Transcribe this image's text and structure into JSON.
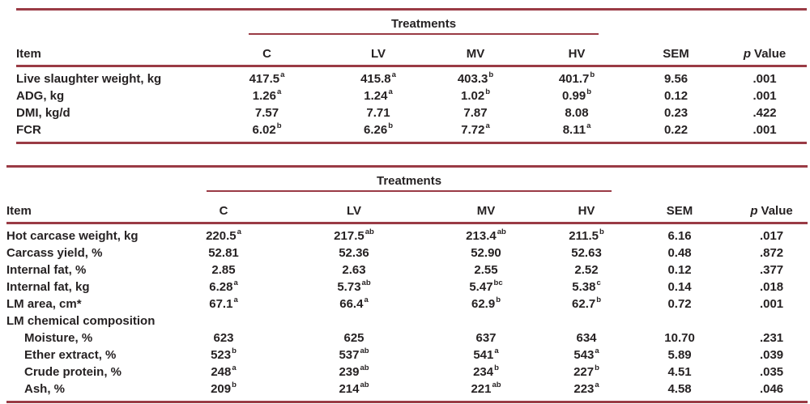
{
  "page": {
    "background": "#ffffff",
    "rule_color": "#9a3b45",
    "text_color": "#262223"
  },
  "tables": [
    {
      "id": "growth-performance",
      "treatments_label": "Treatments",
      "headers": {
        "item": "Item",
        "treatments": [
          "C",
          "LV",
          "MV",
          "HV"
        ],
        "sem": "SEM",
        "p_italic": "p",
        "p_rest": "Value"
      },
      "rows": [
        {
          "label": "Live slaughter weight, kg",
          "indent": false,
          "values": [
            {
              "v": "417.5",
              "sup": "a"
            },
            {
              "v": "415.8",
              "sup": "a"
            },
            {
              "v": "403.3",
              "sup": "b"
            },
            {
              "v": "401.7",
              "sup": "b"
            }
          ],
          "sem": "9.56",
          "p": ".001"
        },
        {
          "label": "ADG, kg",
          "indent": false,
          "values": [
            {
              "v": "1.26",
              "sup": "a"
            },
            {
              "v": "1.24",
              "sup": "a"
            },
            {
              "v": "1.02",
              "sup": "b"
            },
            {
              "v": "0.99",
              "sup": "b"
            }
          ],
          "sem": "0.12",
          "p": ".001"
        },
        {
          "label": "DMI, kg/d",
          "indent": false,
          "values": [
            {
              "v": "7.57",
              "sup": ""
            },
            {
              "v": "7.71",
              "sup": ""
            },
            {
              "v": "7.87",
              "sup": ""
            },
            {
              "v": "8.08",
              "sup": ""
            }
          ],
          "sem": "0.23",
          "p": ".422"
        },
        {
          "label": "FCR",
          "indent": false,
          "values": [
            {
              "v": "6.02",
              "sup": "b"
            },
            {
              "v": "6.26",
              "sup": "b"
            },
            {
              "v": "7.72",
              "sup": "a"
            },
            {
              "v": "8.11",
              "sup": "a"
            }
          ],
          "sem": "0.22",
          "p": ".001"
        }
      ]
    },
    {
      "id": "carcass-traits",
      "treatments_label": "Treatments",
      "headers": {
        "item": "Item",
        "treatments": [
          "C",
          "LV",
          "MV",
          "HV"
        ],
        "sem": "SEM",
        "p_italic": "p",
        "p_rest": "Value"
      },
      "rows": [
        {
          "label": "Hot carcase weight, kg",
          "indent": false,
          "values": [
            {
              "v": "220.5",
              "sup": "a"
            },
            {
              "v": "217.5",
              "sup": "ab"
            },
            {
              "v": "213.4",
              "sup": "ab"
            },
            {
              "v": "211.5",
              "sup": "b"
            }
          ],
          "sem": "6.16",
          "p": ".017"
        },
        {
          "label": "Carcass yield, %",
          "indent": false,
          "values": [
            {
              "v": "52.81",
              "sup": ""
            },
            {
              "v": "52.36",
              "sup": ""
            },
            {
              "v": "52.90",
              "sup": ""
            },
            {
              "v": "52.63",
              "sup": ""
            }
          ],
          "sem": "0.48",
          "p": ".872"
        },
        {
          "label": "Internal fat, %",
          "indent": false,
          "values": [
            {
              "v": "2.85",
              "sup": ""
            },
            {
              "v": "2.63",
              "sup": ""
            },
            {
              "v": "2.55",
              "sup": ""
            },
            {
              "v": "2.52",
              "sup": ""
            }
          ],
          "sem": "0.12",
          "p": ".377"
        },
        {
          "label": "Internal fat, kg",
          "indent": false,
          "values": [
            {
              "v": "6.28",
              "sup": "a"
            },
            {
              "v": "5.73",
              "sup": "ab"
            },
            {
              "v": "5.47",
              "sup": "bc"
            },
            {
              "v": "5.38",
              "sup": "c"
            }
          ],
          "sem": "0.14",
          "p": ".018"
        },
        {
          "label": "LM area, cm*",
          "indent": false,
          "values": [
            {
              "v": "67.1",
              "sup": "a"
            },
            {
              "v": "66.4",
              "sup": "a"
            },
            {
              "v": "62.9",
              "sup": "b"
            },
            {
              "v": "62.7",
              "sup": "b"
            }
          ],
          "sem": "0.72",
          "p": ".001"
        },
        {
          "label": "LM chemical composition",
          "indent": false
        },
        {
          "label": "Moisture, %",
          "indent": true,
          "values": [
            {
              "v": "623",
              "sup": ""
            },
            {
              "v": "625",
              "sup": ""
            },
            {
              "v": "637",
              "sup": ""
            },
            {
              "v": "634",
              "sup": ""
            }
          ],
          "sem": "10.70",
          "p": ".231"
        },
        {
          "label": "Ether extract, %",
          "indent": true,
          "values": [
            {
              "v": "523",
              "sup": "b"
            },
            {
              "v": "537",
              "sup": "ab"
            },
            {
              "v": "541",
              "sup": "a"
            },
            {
              "v": "543",
              "sup": "a"
            }
          ],
          "sem": "5.89",
          "p": ".039"
        },
        {
          "label": "Crude protein, %",
          "indent": true,
          "values": [
            {
              "v": "248",
              "sup": "a"
            },
            {
              "v": "239",
              "sup": "ab"
            },
            {
              "v": "234",
              "sup": "b"
            },
            {
              "v": "227",
              "sup": "b"
            }
          ],
          "sem": "4.51",
          "p": ".035"
        },
        {
          "label": "Ash, %",
          "indent": true,
          "values": [
            {
              "v": "209",
              "sup": "b"
            },
            {
              "v": "214",
              "sup": "ab"
            },
            {
              "v": "221",
              "sup": "ab"
            },
            {
              "v": "223",
              "sup": "a"
            }
          ],
          "sem": "4.58",
          "p": ".046"
        }
      ]
    }
  ]
}
